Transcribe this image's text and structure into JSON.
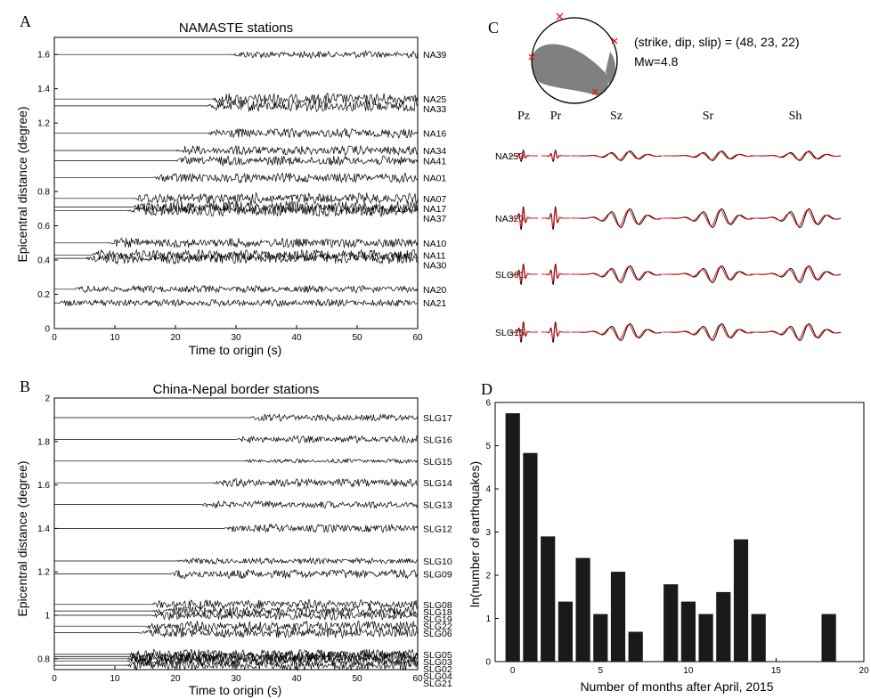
{
  "panels": {
    "a": "A",
    "b": "B",
    "c": "C",
    "d": "D"
  },
  "colors": {
    "ink": "#000000",
    "synthetic": "#e41a1c",
    "mech_fill": "#808080",
    "bar": "#1a1a1a"
  },
  "chart_data": [
    {
      "type": "line",
      "title": "NAMASTE stations",
      "xlabel": "Time to origin (s)",
      "ylabel": "Epicentral distance (degree)",
      "xlim": [
        0,
        60
      ],
      "ylim": [
        0,
        1.7
      ],
      "xticks": [
        0,
        10,
        20,
        30,
        40,
        50,
        60
      ],
      "yticks": [
        0,
        0.2,
        0.4,
        0.6,
        0.8,
        1.2,
        1.4,
        1.6
      ],
      "stations": [
        {
          "name": "NA39",
          "distance": 1.6,
          "onset": 29,
          "amp": 0.6
        },
        {
          "name": "NA25",
          "distance": 1.34,
          "onset": 26,
          "amp": 1.0
        },
        {
          "name": "NA33",
          "distance": 1.3,
          "onset": 25,
          "amp": 1.0
        },
        {
          "name": "NA16",
          "distance": 1.14,
          "onset": 25,
          "amp": 0.8
        },
        {
          "name": "NA34",
          "distance": 1.04,
          "onset": 20,
          "amp": 0.8
        },
        {
          "name": "NA41",
          "distance": 0.98,
          "onset": 20,
          "amp": 0.8
        },
        {
          "name": "NA01",
          "distance": 0.88,
          "onset": 16,
          "amp": 0.8
        },
        {
          "name": "NA07",
          "distance": 0.76,
          "onset": 13,
          "amp": 0.9
        },
        {
          "name": "NA17",
          "distance": 0.71,
          "onset": 13,
          "amp": 1.0
        },
        {
          "name": "NA37",
          "distance": 0.69,
          "onset": 12,
          "amp": 1.0
        },
        {
          "name": "NA10",
          "distance": 0.5,
          "onset": 9,
          "amp": 0.8
        },
        {
          "name": "NA11",
          "distance": 0.43,
          "onset": 6,
          "amp": 0.9
        },
        {
          "name": "NA30",
          "distance": 0.41,
          "onset": 5,
          "amp": 0.9
        },
        {
          "name": "NA20",
          "distance": 0.23,
          "onset": 3,
          "amp": 0.6
        },
        {
          "name": "NA21",
          "distance": 0.15,
          "onset": 0.5,
          "amp": 0.6
        }
      ]
    },
    {
      "type": "line",
      "title": "China-Nepal border stations",
      "xlabel": "Time to origin (s)",
      "ylabel": "Epicentral distance (degree)",
      "xlim": [
        0,
        60
      ],
      "ylim": [
        0.75,
        2.0
      ],
      "xticks": [
        0,
        10,
        20,
        30,
        40,
        50,
        60
      ],
      "yticks": [
        0.8,
        1,
        1.2,
        1.4,
        1.6,
        1.8,
        2
      ],
      "stations": [
        {
          "name": "SLG17",
          "distance": 1.91,
          "onset": 32,
          "amp": 0.7
        },
        {
          "name": "SLG16",
          "distance": 1.81,
          "onset": 30,
          "amp": 0.7
        },
        {
          "name": "SLG15",
          "distance": 1.71,
          "onset": 31,
          "amp": 0.4
        },
        {
          "name": "SLG14",
          "distance": 1.61,
          "onset": 26,
          "amp": 0.8
        },
        {
          "name": "SLG13",
          "distance": 1.51,
          "onset": 24,
          "amp": 0.7
        },
        {
          "name": "SLG12",
          "distance": 1.4,
          "onset": 28,
          "amp": 0.8
        },
        {
          "name": "SLG10",
          "distance": 1.25,
          "onset": 20,
          "amp": 0.6
        },
        {
          "name": "SLG09",
          "distance": 1.19,
          "onset": 19,
          "amp": 0.9
        },
        {
          "name": "SLG08",
          "distance": 1.05,
          "onset": 16,
          "amp": 0.9
        },
        {
          "name": "SLG18",
          "distance": 1.02,
          "onset": 16,
          "amp": 0.9
        },
        {
          "name": "SLG19",
          "distance": 1.0,
          "onset": 16,
          "amp": 0.9
        },
        {
          "name": "SLG22",
          "distance": 0.95,
          "onset": 15,
          "amp": 1.0
        },
        {
          "name": "SLG06",
          "distance": 0.92,
          "onset": 14,
          "amp": 1.0
        },
        {
          "name": "SLG05",
          "distance": 0.82,
          "onset": 12,
          "amp": 1.0
        },
        {
          "name": "SLG03",
          "distance": 0.81,
          "onset": 12,
          "amp": 1.0
        },
        {
          "name": "SLG02",
          "distance": 0.8,
          "onset": 12,
          "amp": 1.0
        },
        {
          "name": "SLG04",
          "distance": 0.79,
          "onset": 12,
          "amp": 1.0
        },
        {
          "name": "SLG21",
          "distance": 0.77,
          "onset": 12,
          "amp": 1.0
        }
      ]
    },
    {
      "type": "line",
      "mechanism_text": "(strike, dip, slip) = (48, 23, 22)",
      "magnitude_text": "Mw=4.8",
      "strike": 48,
      "dip": 23,
      "slip": 22,
      "Mw": 4.8,
      "components": [
        "Pz",
        "Pr",
        "Sz",
        "Sr",
        "Sh"
      ],
      "stations": [
        "NA250",
        "NA320",
        "SLG01",
        "SLG15"
      ],
      "series": [
        {
          "name": "observed",
          "color": "#000000"
        },
        {
          "name": "synthetic",
          "color": "#e41a1c"
        }
      ]
    },
    {
      "type": "bar",
      "xlabel": "Number of months after April, 2015",
      "ylabel": "ln(number of earthquakes)",
      "xlim": [
        -1,
        20
      ],
      "ylim": [
        0,
        6
      ],
      "xticks": [
        0,
        5,
        10,
        15,
        20
      ],
      "yticks": [
        0,
        1,
        2,
        3,
        4,
        5,
        6
      ],
      "x": [
        0,
        1,
        2,
        3,
        4,
        5,
        6,
        7,
        8,
        9,
        10,
        11,
        12,
        13,
        14,
        15,
        16,
        17,
        18
      ],
      "values": [
        5.75,
        4.83,
        2.9,
        1.39,
        2.4,
        1.1,
        2.08,
        0.69,
        0,
        1.79,
        1.39,
        1.1,
        1.61,
        2.83,
        1.1,
        0,
        0,
        0,
        1.1
      ]
    }
  ]
}
